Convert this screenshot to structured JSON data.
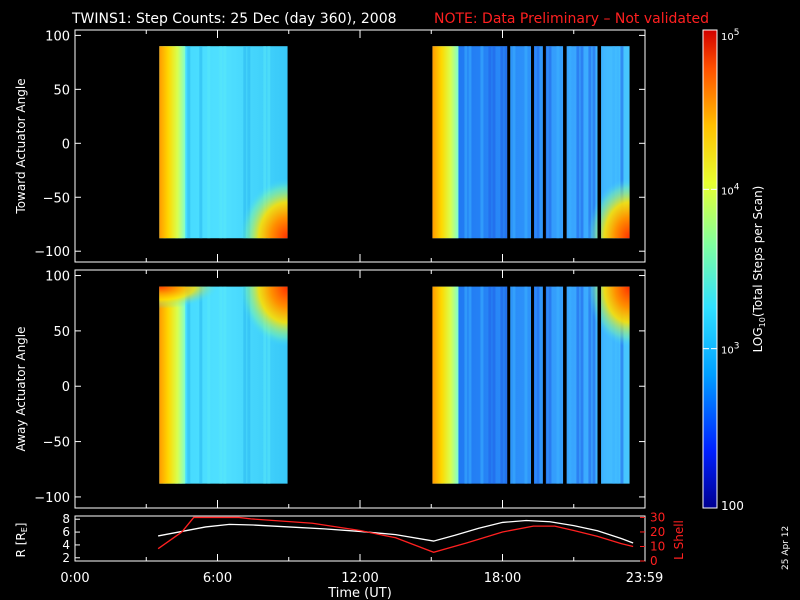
{
  "title": {
    "main": "TWINS1: Step Counts: 25 Dec (day 360), 2008",
    "note": "NOTE: Data Preliminary – Not validated",
    "note_color": "#ff2020"
  },
  "date_stamp": "25 Apr 12",
  "chart_data": [
    {
      "type": "heatmap",
      "panel": "toward",
      "ylabel": "Toward Actuator Angle",
      "ylim": [
        -110,
        105
      ],
      "yticks": [
        100,
        50,
        0,
        -50,
        -100
      ],
      "angle_range": [
        -88,
        90
      ],
      "x_unit": "hours UT",
      "xlim": [
        0,
        24
      ],
      "coverage": [
        [
          3.55,
          8.95
        ],
        [
          15.05,
          23.35
        ]
      ],
      "gaps": [
        [
          18.2,
          18.3
        ],
        [
          19.2,
          19.3
        ],
        [
          19.7,
          19.8
        ],
        [
          20.55,
          20.7
        ],
        [
          22.0,
          22.15
        ]
      ],
      "colorscale": "log10 step counts (rainbow, 100 to 1e5)"
    },
    {
      "type": "heatmap",
      "panel": "away",
      "ylabel": "Away Actuator Angle",
      "ylim": [
        -110,
        105
      ],
      "yticks": [
        100,
        50,
        0,
        -50,
        -100
      ],
      "angle_range": [
        -88,
        90
      ],
      "x_unit": "hours UT",
      "xlim": [
        0,
        24
      ],
      "coverage": [
        [
          3.55,
          8.95
        ],
        [
          15.05,
          23.35
        ]
      ],
      "gaps": [
        [
          18.2,
          18.3
        ],
        [
          19.2,
          19.3
        ],
        [
          19.7,
          19.8
        ],
        [
          20.55,
          20.7
        ],
        [
          22.0,
          22.15
        ]
      ],
      "colorscale": "log10 step counts (rainbow, 100 to 1e5)"
    },
    {
      "type": "line",
      "panel": "ephemeris",
      "ylabel_left": "R [R",
      "ylabel_left_sub": "E",
      "ylabel_left_end": "]",
      "ylabel_right": "L Shell",
      "left_ylim": [
        1.5,
        8.5
      ],
      "left_yticks": [
        8,
        6,
        4,
        2
      ],
      "right_ylim": [
        0,
        31
      ],
      "right_yticks": [
        30,
        20,
        10,
        0
      ],
      "right_color": "#ff2020",
      "xlabel": "Time (UT)",
      "xlim": [
        0,
        24
      ],
      "xticks": [
        {
          "h": 0,
          "label": "0:00"
        },
        {
          "h": 6,
          "label": "6:00"
        },
        {
          "h": 12,
          "label": "12:00"
        },
        {
          "h": 18,
          "label": "18:00"
        },
        {
          "h": 23.98,
          "label": "23:59"
        }
      ],
      "series": [
        {
          "color": "#ffffff",
          "x": [
            3.5,
            4.5,
            5.5,
            6.5,
            7.5,
            9,
            10.5,
            12,
            13.5,
            15.1,
            16,
            17,
            18,
            19,
            20,
            21,
            22,
            23,
            23.5
          ],
          "y": [
            5.4,
            6.1,
            6.8,
            7.2,
            7.1,
            6.8,
            6.5,
            6.1,
            5.6,
            4.6,
            5.5,
            6.6,
            7.5,
            7.8,
            7.6,
            7.0,
            6.2,
            5.0,
            4.3
          ]
        },
        {
          "color": "#ff2020",
          "x": [
            3.5,
            4.5,
            5.0,
            6.9,
            7.4,
            10.0,
            12.0,
            13.5,
            15.1,
            16.5,
            18.0,
            19.3,
            20.2,
            21.0,
            22.0,
            23.0,
            23.5
          ],
          "y": [
            8.5,
            20,
            30,
            30,
            29,
            26,
            21,
            16,
            6,
            12.5,
            20,
            24,
            24,
            21,
            17,
            12,
            10
          ]
        }
      ]
    }
  ],
  "colorbar": {
    "label_prefix": "LOG",
    "label_sub": "10",
    "label_suffix": "(Total Steps per Scan)",
    "ticks": [
      {
        "base": "10",
        "exp": "5",
        "value": 100000
      },
      {
        "base": "10",
        "exp": "4",
        "value": 10000
      },
      {
        "base": "10",
        "exp": "3",
        "value": 1000
      },
      {
        "text": "100",
        "value": 100
      }
    ]
  }
}
